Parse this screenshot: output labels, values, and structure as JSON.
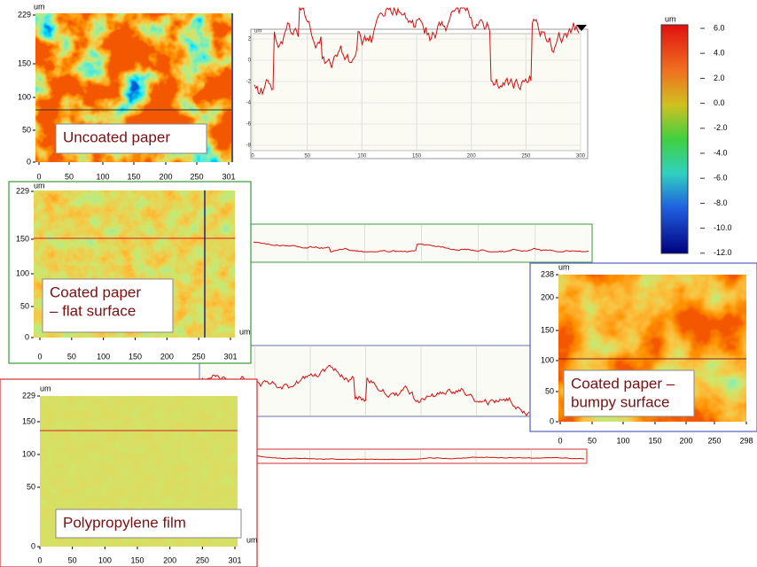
{
  "colorbar": {
    "unit": "um",
    "labels": [
      "6.0",
      "4.0",
      "2.0",
      "0.0",
      "-2.0",
      "-4.0",
      "-6.0",
      "-8.0",
      "-10.0",
      "-12.0"
    ]
  },
  "maps": [
    {
      "caption": [
        "Uncoated paper"
      ],
      "unit": "um",
      "yticks": [
        "229",
        "150",
        "100",
        "50",
        "0"
      ],
      "xticks": [
        "0",
        "50",
        "100",
        "150",
        "200",
        "250",
        "301"
      ]
    },
    {
      "caption": [
        "Coated paper",
        "– flat surface"
      ],
      "unit": "um",
      "yticks": [
        "229",
        "150",
        "100",
        "50",
        "0"
      ],
      "xticks": [
        "0",
        "50",
        "100",
        "150",
        "200",
        "250",
        "301"
      ]
    },
    {
      "caption": [
        "Coated paper –",
        "bumpy surface"
      ],
      "unit": "um",
      "yticks": [
        "238",
        "200",
        "150",
        "100",
        "50",
        "0"
      ],
      "xticks": [
        "0",
        "50",
        "100",
        "150",
        "200",
        "250",
        "298"
      ]
    },
    {
      "caption": [
        "Polypropylene film"
      ],
      "unit": "um",
      "yticks": [
        "229",
        "150",
        "100",
        "50",
        "0"
      ],
      "xticks": [
        "0",
        "50",
        "100",
        "150",
        "200",
        "250",
        "301"
      ]
    }
  ],
  "profile": {
    "unit": "um",
    "yticks": [
      "2",
      "0",
      "-2",
      "-4",
      "-6",
      "-8"
    ],
    "xticks": [
      "0",
      "50",
      "100",
      "150",
      "200",
      "250",
      "300"
    ]
  }
}
